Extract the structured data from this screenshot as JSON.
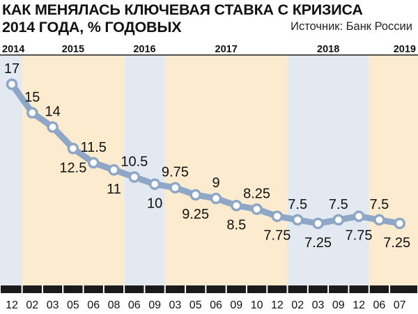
{
  "header": {
    "title_line1": "КАК МЕНЯЛАСЬ КЛЮЧЕВАЯ СТАВКА С КРИЗИСА",
    "title_line2": "2014 ГОДА, % ГОДОВЫХ",
    "source": "Источник: Банк России"
  },
  "colors": {
    "line": "#8ea7c7",
    "marker_fill": "#ffffff",
    "band_blue": "#e3e9f1",
    "band_orange": "#fcebcf",
    "axis": "#1a1a1a"
  },
  "chart_data": {
    "type": "line",
    "title": "КАК МЕНЯЛАСЬ КЛЮЧЕВАЯ СТАВКА С КРИЗИСА 2014 ГОДА, % ГОДОВЫХ",
    "xlabel": "",
    "ylabel": "",
    "ylim": [
      7,
      17
    ],
    "categories": [
      "12",
      "02",
      "03",
      "05",
      "06",
      "08",
      "06",
      "09",
      "03",
      "05",
      "06",
      "09",
      "10",
      "12",
      "02",
      "03",
      "09",
      "12",
      "06",
      "07"
    ],
    "values": [
      17,
      15,
      14,
      12.5,
      11.5,
      11,
      10.5,
      10,
      9.75,
      9.25,
      9,
      8.5,
      8.25,
      7.75,
      7.5,
      7.25,
      7.5,
      7.75,
      7.5,
      7.25
    ],
    "data_labels": [
      "17",
      "15",
      "14",
      "12.5",
      "11.5",
      "11",
      "10.5",
      "10",
      "9.75",
      "9.25",
      "9",
      "8.5",
      "8.25",
      "7.75",
      "7.5",
      "7.25",
      "7.5",
      "7.75",
      "7.5",
      "7.25"
    ],
    "years": [
      {
        "label": "2014",
        "start": 0,
        "end": 0,
        "shade": "blue"
      },
      {
        "label": "2015",
        "start": 1,
        "end": 5,
        "shade": "orange"
      },
      {
        "label": "2016",
        "start": 6,
        "end": 7,
        "shade": "blue"
      },
      {
        "label": "2017",
        "start": 8,
        "end": 13,
        "shade": "orange"
      },
      {
        "label": "2018",
        "start": 14,
        "end": 17,
        "shade": "blue"
      },
      {
        "label": "2019",
        "start": 18,
        "end": 19,
        "shade": "orange"
      }
    ],
    "grid": false,
    "legend": "none"
  }
}
